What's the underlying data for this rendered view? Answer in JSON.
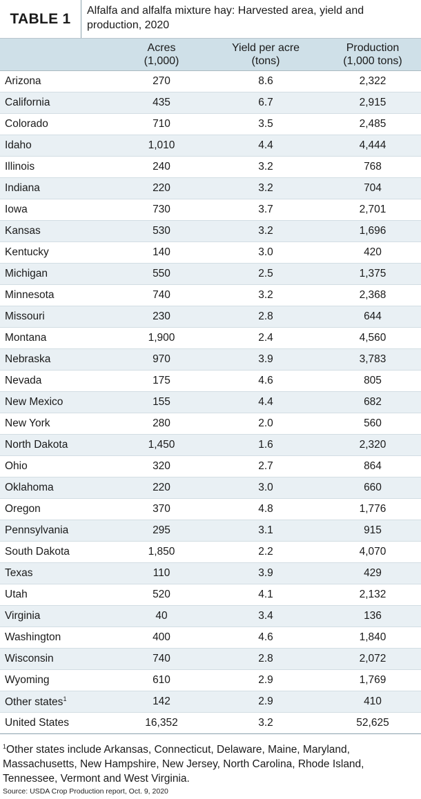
{
  "title": {
    "label": "TABLE 1",
    "text_line1": "Alfalfa and alfalfa mixture hay: Harvested area, yield and",
    "text_line2": "production, 2020"
  },
  "headers": {
    "acres_line1": "Acres",
    "acres_line2": "(1,000)",
    "yield_line1": "Yield per acre",
    "yield_line2": "(tons)",
    "production_line1": "Production",
    "production_line2": "(1,000 tons)"
  },
  "rows": [
    {
      "state": "Arizona",
      "acres": "270",
      "yield": "8.6",
      "production": "2,322"
    },
    {
      "state": "California",
      "acres": "435",
      "yield": "6.7",
      "production": "2,915"
    },
    {
      "state": "Colorado",
      "acres": "710",
      "yield": "3.5",
      "production": "2,485"
    },
    {
      "state": "Idaho",
      "acres": "1,010",
      "yield": "4.4",
      "production": "4,444"
    },
    {
      "state": "Illinois",
      "acres": "240",
      "yield": "3.2",
      "production": "768"
    },
    {
      "state": "Indiana",
      "acres": "220",
      "yield": "3.2",
      "production": "704"
    },
    {
      "state": "Iowa",
      "acres": "730",
      "yield": "3.7",
      "production": "2,701"
    },
    {
      "state": "Kansas",
      "acres": "530",
      "yield": "3.2",
      "production": "1,696"
    },
    {
      "state": "Kentucky",
      "acres": "140",
      "yield": "3.0",
      "production": "420"
    },
    {
      "state": "Michigan",
      "acres": "550",
      "yield": "2.5",
      "production": "1,375"
    },
    {
      "state": "Minnesota",
      "acres": "740",
      "yield": "3.2",
      "production": "2,368"
    },
    {
      "state": "Missouri",
      "acres": "230",
      "yield": "2.8",
      "production": "644"
    },
    {
      "state": "Montana",
      "acres": "1,900",
      "yield": "2.4",
      "production": "4,560"
    },
    {
      "state": "Nebraska",
      "acres": "970",
      "yield": "3.9",
      "production": "3,783"
    },
    {
      "state": "Nevada",
      "acres": "175",
      "yield": "4.6",
      "production": "805"
    },
    {
      "state": "New Mexico",
      "acres": "155",
      "yield": "4.4",
      "production": "682"
    },
    {
      "state": "New York",
      "acres": "280",
      "yield": "2.0",
      "production": "560"
    },
    {
      "state": "North Dakota",
      "acres": "1,450",
      "yield": "1.6",
      "production": "2,320"
    },
    {
      "state": "Ohio",
      "acres": "320",
      "yield": "2.7",
      "production": "864"
    },
    {
      "state": "Oklahoma",
      "acres": "220",
      "yield": "3.0",
      "production": "660"
    },
    {
      "state": "Oregon",
      "acres": "370",
      "yield": "4.8",
      "production": "1,776"
    },
    {
      "state": "Pennsylvania",
      "acres": "295",
      "yield": "3.1",
      "production": "915"
    },
    {
      "state": "South Dakota",
      "acres": "1,850",
      "yield": "2.2",
      "production": "4,070"
    },
    {
      "state": "Texas",
      "acres": "110",
      "yield": "3.9",
      "production": "429"
    },
    {
      "state": "Utah",
      "acres": "520",
      "yield": "4.1",
      "production": "2,132"
    },
    {
      "state": "Virginia",
      "acres": "40",
      "yield": "3.4",
      "production": "136"
    },
    {
      "state": "Washington",
      "acres": "400",
      "yield": "4.6",
      "production": "1,840"
    },
    {
      "state": "Wisconsin",
      "acres": "740",
      "yield": "2.8",
      "production": "2,072"
    },
    {
      "state": "Wyoming",
      "acres": "610",
      "yield": "2.9",
      "production": "1,769"
    },
    {
      "state": "Other states",
      "sup": "1",
      "acres": "142",
      "yield": "2.9",
      "production": "410"
    },
    {
      "state": "United States",
      "acres": "16,352",
      "yield": "3.2",
      "production": "52,625"
    }
  ],
  "footnote": {
    "marker": "1",
    "text": "Other states include Arkansas, Connecticut, Delaware, Maine, Maryland, Massachusetts, New Hampshire, New Jersey, North Carolina, Rhode Island, Tennessee, Vermont and West Virginia."
  },
  "source": "Source: USDA Crop Production report, Oct. 9, 2020"
}
